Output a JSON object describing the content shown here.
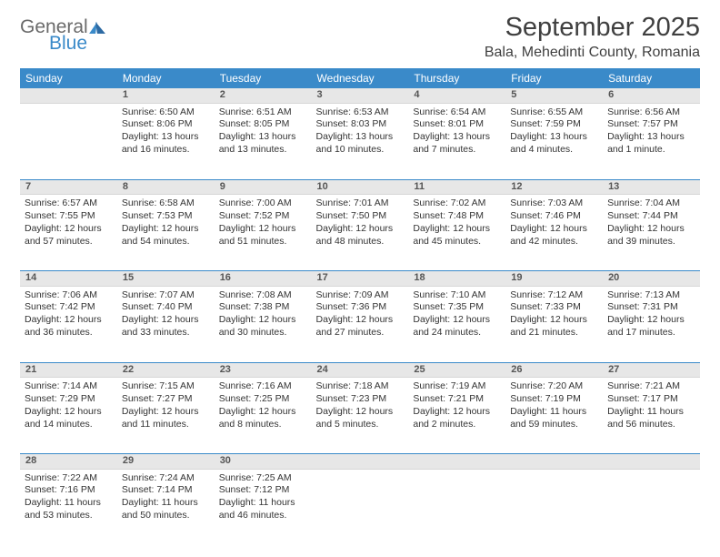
{
  "logo": {
    "text1": "General",
    "text2": "Blue"
  },
  "header": {
    "title": "September 2025",
    "location": "Bala, Mehedinti County, Romania"
  },
  "colors": {
    "header_bg": "#3a8ac9",
    "daynum_bg": "#e7e7e7",
    "week_sep": "#3a8ac9",
    "text": "#333333",
    "title": "#3f3f3f"
  },
  "weekdays": [
    "Sunday",
    "Monday",
    "Tuesday",
    "Wednesday",
    "Thursday",
    "Friday",
    "Saturday"
  ],
  "weeks": [
    {
      "nums": [
        "",
        "1",
        "2",
        "3",
        "4",
        "5",
        "6"
      ],
      "cells": [
        null,
        {
          "sr": "Sunrise: 6:50 AM",
          "ss": "Sunset: 8:06 PM",
          "dl": "Daylight: 13 hours and 16 minutes."
        },
        {
          "sr": "Sunrise: 6:51 AM",
          "ss": "Sunset: 8:05 PM",
          "dl": "Daylight: 13 hours and 13 minutes."
        },
        {
          "sr": "Sunrise: 6:53 AM",
          "ss": "Sunset: 8:03 PM",
          "dl": "Daylight: 13 hours and 10 minutes."
        },
        {
          "sr": "Sunrise: 6:54 AM",
          "ss": "Sunset: 8:01 PM",
          "dl": "Daylight: 13 hours and 7 minutes."
        },
        {
          "sr": "Sunrise: 6:55 AM",
          "ss": "Sunset: 7:59 PM",
          "dl": "Daylight: 13 hours and 4 minutes."
        },
        {
          "sr": "Sunrise: 6:56 AM",
          "ss": "Sunset: 7:57 PM",
          "dl": "Daylight: 13 hours and 1 minute."
        }
      ]
    },
    {
      "nums": [
        "7",
        "8",
        "9",
        "10",
        "11",
        "12",
        "13"
      ],
      "cells": [
        {
          "sr": "Sunrise: 6:57 AM",
          "ss": "Sunset: 7:55 PM",
          "dl": "Daylight: 12 hours and 57 minutes."
        },
        {
          "sr": "Sunrise: 6:58 AM",
          "ss": "Sunset: 7:53 PM",
          "dl": "Daylight: 12 hours and 54 minutes."
        },
        {
          "sr": "Sunrise: 7:00 AM",
          "ss": "Sunset: 7:52 PM",
          "dl": "Daylight: 12 hours and 51 minutes."
        },
        {
          "sr": "Sunrise: 7:01 AM",
          "ss": "Sunset: 7:50 PM",
          "dl": "Daylight: 12 hours and 48 minutes."
        },
        {
          "sr": "Sunrise: 7:02 AM",
          "ss": "Sunset: 7:48 PM",
          "dl": "Daylight: 12 hours and 45 minutes."
        },
        {
          "sr": "Sunrise: 7:03 AM",
          "ss": "Sunset: 7:46 PM",
          "dl": "Daylight: 12 hours and 42 minutes."
        },
        {
          "sr": "Sunrise: 7:04 AM",
          "ss": "Sunset: 7:44 PM",
          "dl": "Daylight: 12 hours and 39 minutes."
        }
      ]
    },
    {
      "nums": [
        "14",
        "15",
        "16",
        "17",
        "18",
        "19",
        "20"
      ],
      "cells": [
        {
          "sr": "Sunrise: 7:06 AM",
          "ss": "Sunset: 7:42 PM",
          "dl": "Daylight: 12 hours and 36 minutes."
        },
        {
          "sr": "Sunrise: 7:07 AM",
          "ss": "Sunset: 7:40 PM",
          "dl": "Daylight: 12 hours and 33 minutes."
        },
        {
          "sr": "Sunrise: 7:08 AM",
          "ss": "Sunset: 7:38 PM",
          "dl": "Daylight: 12 hours and 30 minutes."
        },
        {
          "sr": "Sunrise: 7:09 AM",
          "ss": "Sunset: 7:36 PM",
          "dl": "Daylight: 12 hours and 27 minutes."
        },
        {
          "sr": "Sunrise: 7:10 AM",
          "ss": "Sunset: 7:35 PM",
          "dl": "Daylight: 12 hours and 24 minutes."
        },
        {
          "sr": "Sunrise: 7:12 AM",
          "ss": "Sunset: 7:33 PM",
          "dl": "Daylight: 12 hours and 21 minutes."
        },
        {
          "sr": "Sunrise: 7:13 AM",
          "ss": "Sunset: 7:31 PM",
          "dl": "Daylight: 12 hours and 17 minutes."
        }
      ]
    },
    {
      "nums": [
        "21",
        "22",
        "23",
        "24",
        "25",
        "26",
        "27"
      ],
      "cells": [
        {
          "sr": "Sunrise: 7:14 AM",
          "ss": "Sunset: 7:29 PM",
          "dl": "Daylight: 12 hours and 14 minutes."
        },
        {
          "sr": "Sunrise: 7:15 AM",
          "ss": "Sunset: 7:27 PM",
          "dl": "Daylight: 12 hours and 11 minutes."
        },
        {
          "sr": "Sunrise: 7:16 AM",
          "ss": "Sunset: 7:25 PM",
          "dl": "Daylight: 12 hours and 8 minutes."
        },
        {
          "sr": "Sunrise: 7:18 AM",
          "ss": "Sunset: 7:23 PM",
          "dl": "Daylight: 12 hours and 5 minutes."
        },
        {
          "sr": "Sunrise: 7:19 AM",
          "ss": "Sunset: 7:21 PM",
          "dl": "Daylight: 12 hours and 2 minutes."
        },
        {
          "sr": "Sunrise: 7:20 AM",
          "ss": "Sunset: 7:19 PM",
          "dl": "Daylight: 11 hours and 59 minutes."
        },
        {
          "sr": "Sunrise: 7:21 AM",
          "ss": "Sunset: 7:17 PM",
          "dl": "Daylight: 11 hours and 56 minutes."
        }
      ]
    },
    {
      "nums": [
        "28",
        "29",
        "30",
        "",
        "",
        "",
        ""
      ],
      "cells": [
        {
          "sr": "Sunrise: 7:22 AM",
          "ss": "Sunset: 7:16 PM",
          "dl": "Daylight: 11 hours and 53 minutes."
        },
        {
          "sr": "Sunrise: 7:24 AM",
          "ss": "Sunset: 7:14 PM",
          "dl": "Daylight: 11 hours and 50 minutes."
        },
        {
          "sr": "Sunrise: 7:25 AM",
          "ss": "Sunset: 7:12 PM",
          "dl": "Daylight: 11 hours and 46 minutes."
        },
        null,
        null,
        null,
        null
      ]
    }
  ]
}
